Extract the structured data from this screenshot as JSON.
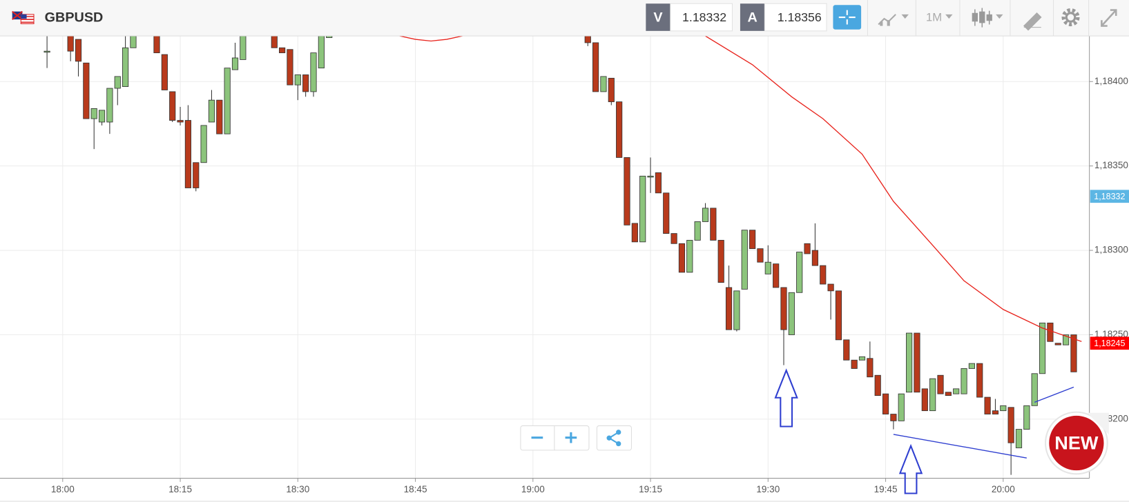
{
  "toolbar": {
    "symbol": "GBPUSD",
    "bid_label": "V",
    "bid": 1.18332,
    "ask_label": "A",
    "ask": 1.18356,
    "timeframe": "1M"
  },
  "badge": "NEW",
  "chart_data": {
    "type": "candlestick",
    "title": "GBPUSD",
    "up_color": "#8cc47c",
    "down_color": "#b83a1c",
    "x": [
      "17:58",
      "18:01",
      "18:02",
      "18:03",
      "18:04",
      "18:05",
      "18:06",
      "18:07",
      "18:08",
      "18:09",
      "18:12",
      "18:13",
      "18:14",
      "18:15",
      "18:16",
      "18:17",
      "18:18",
      "18:19",
      "18:20",
      "18:21",
      "18:22",
      "18:23",
      "18:27",
      "18:28",
      "18:29",
      "18:30",
      "18:31",
      "18:32",
      "18:33",
      "18:34",
      "19:07",
      "19:08",
      "19:09",
      "19:10",
      "19:11",
      "19:12",
      "19:13",
      "19:14",
      "19:15",
      "19:16",
      "19:17",
      "19:18",
      "19:19",
      "19:20",
      "19:21",
      "19:22",
      "19:23",
      "19:24",
      "19:25",
      "19:26",
      "19:27",
      "19:28",
      "19:29",
      "19:30",
      "19:31",
      "19:32",
      "19:33",
      "19:34",
      "19:35",
      "19:36",
      "19:37",
      "19:38",
      "19:39",
      "19:40",
      "19:41",
      "19:42",
      "19:43",
      "19:44",
      "19:45",
      "19:46",
      "19:47",
      "19:48",
      "19:49",
      "19:50",
      "19:51",
      "19:52",
      "19:53",
      "19:54",
      "19:55",
      "19:56",
      "19:57",
      "19:58",
      "19:59",
      "20:00",
      "20:01",
      "20:02",
      "20:03",
      "20:04",
      "20:05",
      "20:06",
      "20:07",
      "20:08",
      "20:09"
    ],
    "open": [
      1.18418,
      1.18427,
      1.18425,
      1.18411,
      1.18378,
      1.18376,
      1.18376,
      1.18396,
      1.18397,
      1.1842,
      1.18427,
      1.18416,
      1.18394,
      1.18377,
      1.18377,
      1.18352,
      1.18352,
      1.18376,
      1.18389,
      1.18369,
      1.18407,
      1.18413,
      1.18427,
      1.1842,
      1.18419,
      1.18398,
      1.18404,
      1.18394,
      1.18408,
      1.18426,
      1.18427,
      1.18423,
      1.18394,
      1.18402,
      1.18388,
      1.18355,
      1.18316,
      1.18305,
      1.18344,
      1.18346,
      1.18334,
      1.1831,
      1.18304,
      1.18287,
      1.18306,
      1.18317,
      1.18325,
      1.18306,
      1.18278,
      1.18253,
      1.18277,
      1.18312,
      1.18301,
      1.18286,
      1.18292,
      1.18278,
      1.1825,
      1.18275,
      1.18304,
      1.183,
      1.18291,
      1.1828,
      1.18276,
      1.18247,
      1.18235,
      1.18235,
      1.18236,
      1.18226,
      1.18215,
      1.18203,
      1.18199,
      1.18216,
      1.18251,
      1.18218,
      1.18205,
      1.18226,
      1.18216,
      1.18215,
      1.18215,
      1.1823,
      1.18233,
      1.18213,
      1.18205,
      1.18205,
      1.18207,
      1.18183,
      1.18194,
      1.18208,
      1.18227,
      1.18257,
      1.18245,
      1.18244,
      1.1825
    ],
    "high": [
      1.18427,
      1.18427,
      1.18425,
      1.18411,
      1.18384,
      1.18383,
      1.18396,
      1.18403,
      1.18427,
      1.18427,
      1.18427,
      1.18416,
      1.18394,
      1.18385,
      1.18386,
      1.18352,
      1.18374,
      1.18395,
      1.18389,
      1.18408,
      1.18423,
      1.18427,
      1.18427,
      1.1842,
      1.18419,
      1.18404,
      1.18404,
      1.18417,
      1.18427,
      1.18427,
      1.18427,
      1.18423,
      1.18403,
      1.18402,
      1.18388,
      1.18355,
      1.18316,
      1.18344,
      1.18355,
      1.18346,
      1.18334,
      1.1831,
      1.18304,
      1.18306,
      1.18317,
      1.18328,
      1.18325,
      1.18306,
      1.18291,
      1.18276,
      1.18312,
      1.18312,
      1.18301,
      1.18303,
      1.18292,
      1.18278,
      1.18275,
      1.18299,
      1.18304,
      1.18316,
      1.18291,
      1.1828,
      1.18276,
      1.18247,
      1.18235,
      1.18237,
      1.18246,
      1.18226,
      1.18215,
      1.18203,
      1.18215,
      1.18251,
      1.18251,
      1.18218,
      1.18224,
      1.18226,
      1.18216,
      1.18218,
      1.1823,
      1.18233,
      1.18233,
      1.18213,
      1.18212,
      1.18208,
      1.18207,
      1.18194,
      1.18208,
      1.18227,
      1.18257,
      1.18257,
      1.18245,
      1.1825,
      1.1825
    ],
    "low": [
      1.18408,
      1.18412,
      1.18403,
      1.18378,
      1.1836,
      1.18374,
      1.18369,
      1.18386,
      1.18397,
      1.1842,
      1.18417,
      1.18395,
      1.18376,
      1.18374,
      1.18337,
      1.18335,
      1.18352,
      1.18376,
      1.18369,
      1.18369,
      1.18407,
      1.18413,
      1.1842,
      1.18417,
      1.18398,
      1.18389,
      1.18391,
      1.18391,
      1.18408,
      1.18426,
      1.18421,
      1.18394,
      1.18394,
      1.18386,
      1.18355,
      1.18315,
      1.18305,
      1.18305,
      1.18334,
      1.18334,
      1.1831,
      1.18304,
      1.18287,
      1.18287,
      1.18306,
      1.18317,
      1.18306,
      1.18281,
      1.18253,
      1.18252,
      1.18277,
      1.18301,
      1.18293,
      1.18286,
      1.18278,
      1.18232,
      1.1825,
      1.18275,
      1.18298,
      1.18291,
      1.1828,
      1.18259,
      1.18247,
      1.18235,
      1.1823,
      1.18235,
      1.18225,
      1.18214,
      1.18203,
      1.18194,
      1.18199,
      1.18216,
      1.18216,
      1.18205,
      1.18205,
      1.18215,
      1.18214,
      1.18215,
      1.18215,
      1.1823,
      1.18213,
      1.18203,
      1.18203,
      1.18205,
      1.18167,
      1.18183,
      1.18194,
      1.18208,
      1.18227,
      1.18246,
      1.18244,
      1.18244,
      1.18228
    ],
    "close": [
      1.18418,
      1.18418,
      1.18412,
      1.18378,
      1.18384,
      1.18383,
      1.18396,
      1.18403,
      1.1842,
      1.18427,
      1.18417,
      1.18395,
      1.18377,
      1.18376,
      1.18337,
      1.18337,
      1.18374,
      1.18389,
      1.18369,
      1.18408,
      1.18414,
      1.18427,
      1.1842,
      1.18417,
      1.18398,
      1.18404,
      1.18394,
      1.18417,
      1.18427,
      1.18427,
      1.18423,
      1.18394,
      1.18403,
      1.18388,
      1.18355,
      1.18315,
      1.18305,
      1.18344,
      1.18344,
      1.18334,
      1.1831,
      1.18304,
      1.18287,
      1.18306,
      1.18317,
      1.18325,
      1.18306,
      1.18281,
      1.18253,
      1.18276,
      1.18312,
      1.18301,
      1.18293,
      1.18293,
      1.18278,
      1.18253,
      1.18275,
      1.18299,
      1.18298,
      1.18291,
      1.1828,
      1.18276,
      1.18247,
      1.18235,
      1.1823,
      1.18237,
      1.18225,
      1.18214,
      1.18203,
      1.18199,
      1.18215,
      1.18251,
      1.18216,
      1.18205,
      1.18224,
      1.18215,
      1.18214,
      1.18218,
      1.1823,
      1.18233,
      1.18213,
      1.18203,
      1.18203,
      1.18208,
      1.18186,
      1.18194,
      1.18208,
      1.18227,
      1.18257,
      1.18246,
      1.18244,
      1.1825,
      1.18228
    ],
    "lines": [
      {
        "x": [
          "18:43",
          "18:45",
          "18:47",
          "18:49",
          "18:51",
          "18:52",
          "19:22",
          "19:28",
          "19:33",
          "19:37",
          "19:42",
          "19:46",
          "19:51",
          "19:55",
          "20:00",
          "20:05",
          "20:10"
        ],
        "values": [
          1.18427,
          1.18425,
          1.18424,
          1.18425,
          1.18427,
          null,
          1.18427,
          1.1841,
          1.18391,
          1.18378,
          1.18357,
          1.18329,
          1.18303,
          1.18282,
          1.18265,
          1.18254,
          1.18246
        ],
        "color": "#e8231c"
      },
      {
        "x": [
          "19:46",
          "20:03"
        ],
        "values": [
          1.18191,
          1.18177
        ],
        "color": "#2f3fd0"
      },
      {
        "x": [
          "20:04",
          "20:09"
        ],
        "values": [
          1.1821,
          1.18219
        ],
        "color": "#2f3fd0"
      }
    ],
    "price_markers": [
      {
        "value": 1.18332,
        "label": "1,18332",
        "color": "#5cb6e4"
      },
      {
        "value": 1.18245,
        "label": "1,18245",
        "color": "#ff0000"
      }
    ],
    "xlim": [
      "17:52",
      "20:11"
    ],
    "xticks": [
      "18:00",
      "18:15",
      "18:30",
      "18:45",
      "19:00",
      "19:15",
      "19:30",
      "19:45",
      "20:00"
    ],
    "ylim": [
      1.18165,
      1.18427
    ],
    "yticks": [
      {
        "value": 1.182,
        "label": "1,18200"
      },
      {
        "value": 1.1825,
        "label": "1,18250"
      },
      {
        "value": 1.183,
        "label": "1,18300"
      },
      {
        "value": 1.1835,
        "label": "1,18350"
      },
      {
        "value": 1.184,
        "label": "1,18400"
      }
    ],
    "grid": true
  }
}
